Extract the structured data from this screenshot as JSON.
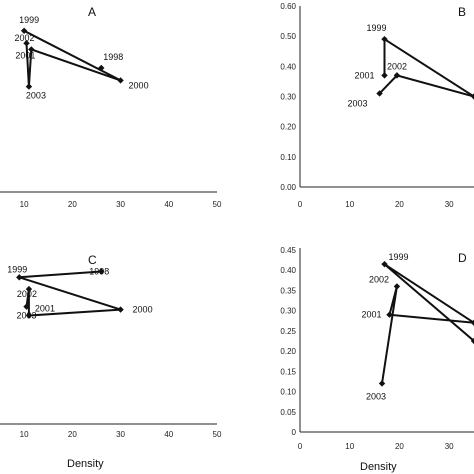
{
  "chart_data": [
    {
      "type": "line",
      "panel": "A",
      "x_ticks": [
        "10",
        "20",
        "30",
        "40",
        "50"
      ],
      "y_ticks": [],
      "xlim": [
        5,
        50
      ],
      "ylim": [
        0.0,
        0.6
      ],
      "xlabel": "",
      "points": [
        {
          "label": "1999",
          "x": 10,
          "y": 0.52
        },
        {
          "label": "2002",
          "x": 10.5,
          "y": 0.48
        },
        {
          "label": "2001",
          "x": 11.5,
          "y": 0.46
        },
        {
          "label": "2003",
          "x": 11,
          "y": 0.34
        },
        {
          "label": "1998",
          "x": 26,
          "y": 0.4
        },
        {
          "label": "2000",
          "x": 30,
          "y": 0.36
        }
      ],
      "path_order": [
        "1999",
        "2000",
        "2001",
        "2003",
        "2002"
      ]
    },
    {
      "type": "line",
      "panel": "B",
      "x_ticks": [
        "0",
        "10",
        "20",
        "30"
      ],
      "y_ticks": [
        "0.00",
        "0.10",
        "0.20",
        "0.30",
        "0.40",
        "0.50",
        "0.60"
      ],
      "xlim": [
        0,
        35
      ],
      "ylim": [
        0.0,
        0.6
      ],
      "xlabel": "",
      "points": [
        {
          "label": "1999",
          "x": 17,
          "y": 0.49
        },
        {
          "label": "2002",
          "x": 19.5,
          "y": 0.37
        },
        {
          "label": "2001",
          "x": 17,
          "y": 0.37
        },
        {
          "label": "2003",
          "x": 16,
          "y": 0.31
        },
        {
          "label": "",
          "x": 35,
          "y": 0.3
        }
      ],
      "path_order": [
        "2003",
        "2002",
        "",
        "1999",
        "2001"
      ]
    },
    {
      "type": "line",
      "panel": "C",
      "x_ticks": [
        "10",
        "20",
        "30",
        "40",
        "50"
      ],
      "y_ticks": [],
      "xlim": [
        5,
        50
      ],
      "ylim": [
        0.0,
        0.6
      ],
      "xlabel": "Density",
      "points": [
        {
          "label": "1999",
          "x": 9,
          "y": 0.5
        },
        {
          "label": "1998",
          "x": 26,
          "y": 0.52
        },
        {
          "label": "2002",
          "x": 11,
          "y": 0.46
        },
        {
          "label": "2003",
          "x": 10.5,
          "y": 0.4
        },
        {
          "label": "2001",
          "x": 11,
          "y": 0.37
        },
        {
          "label": "2000",
          "x": 30,
          "y": 0.39
        }
      ],
      "path_order": [
        "1998",
        "1999",
        "2000",
        "2001",
        "2002",
        "2003"
      ]
    },
    {
      "type": "line",
      "panel": "D",
      "x_ticks": [
        "0",
        "10",
        "20",
        "30"
      ],
      "y_ticks": [
        "0",
        "0.05",
        "0.10",
        "0.15",
        "0.20",
        "0.25",
        "0.30",
        "0.35",
        "0.40",
        "0.45"
      ],
      "xlim": [
        0,
        35
      ],
      "ylim": [
        0.0,
        0.45
      ],
      "xlabel": "Density",
      "points": [
        {
          "label": "1999",
          "x": 17,
          "y": 0.415
        },
        {
          "label": "2002",
          "x": 19.5,
          "y": 0.36
        },
        {
          "label": "2001",
          "x": 18,
          "y": 0.29
        },
        {
          "label": "2003",
          "x": 16.5,
          "y": 0.12
        },
        {
          "label": "",
          "x": 35,
          "y": 0.27
        },
        {
          "label": "",
          "x": 35,
          "y": 0.225
        }
      ],
      "path_order": [
        "2003",
        "2002",
        "2001",
        "",
        "1999",
        ""
      ]
    }
  ]
}
